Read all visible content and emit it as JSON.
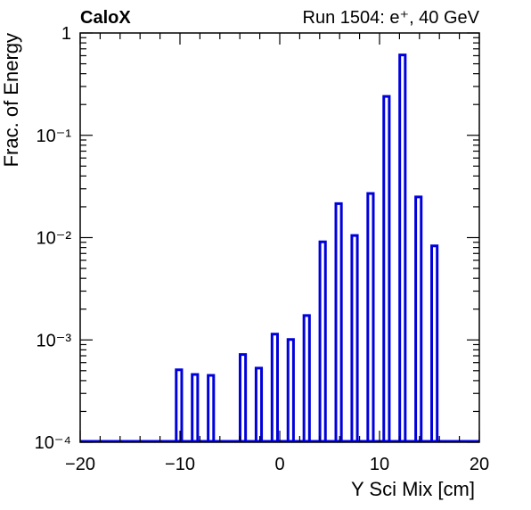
{
  "chart_data": {
    "type": "bar",
    "title_left": "CaloX",
    "title_right": "Run 1504: e⁺, 40 GeV",
    "xlabel": "Y Sci Mix [cm]",
    "ylabel": "Frac. of Energy",
    "xlim": [
      -20,
      20
    ],
    "ylim": [
      0.0001,
      1
    ],
    "yscale": "log",
    "x_ticks": [
      "−20",
      "−10",
      "0",
      "10",
      "20"
    ],
    "y_ticks": [
      "10⁻⁴",
      "10⁻³",
      "10⁻²",
      "10⁻¹",
      "1"
    ],
    "bar_width": 0.55,
    "color": "#0000dd",
    "x": [
      -10.1,
      -8.5,
      -6.9,
      -3.7,
      -2.1,
      -0.5,
      1.1,
      2.7,
      4.3,
      5.9,
      7.5,
      9.1,
      10.7,
      12.3,
      13.9,
      15.5
    ],
    "values": [
      0.00051,
      0.00046,
      0.00045,
      0.00072,
      0.00053,
      0.00114,
      0.00101,
      0.00173,
      0.0091,
      0.0215,
      0.0105,
      0.027,
      0.24,
      0.61,
      0.025,
      0.0083
    ]
  }
}
